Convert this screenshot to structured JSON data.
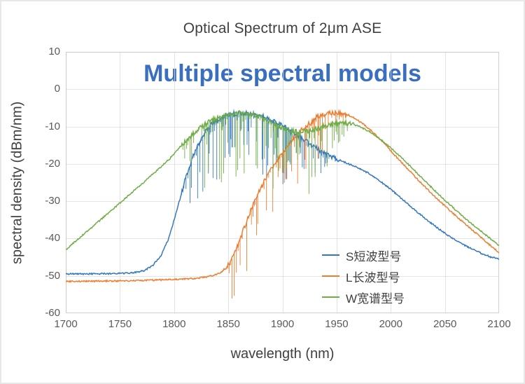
{
  "title": "Optical Spectrum of 2μm ASE",
  "overlay": "Multiple spectral models",
  "axes": {
    "x_label": "wavelength (nm)",
    "y_label": "spectral density (dBm/nm)"
  },
  "colors": {
    "gridline": "#dcdcdc",
    "plot_border": "#c6c6c6",
    "tick_text": "#595959",
    "title_text": "#404040",
    "overlay_text": "#3a6fc0"
  },
  "legend": {
    "items": [
      {
        "label": "S短波型号"
      },
      {
        "label": "L长波型号"
      },
      {
        "label": "W宽谱型号"
      }
    ]
  },
  "chart_data": {
    "type": "line",
    "title": "Optical Spectrum of 2μm ASE",
    "xlabel": "wavelength (nm)",
    "ylabel": "spectral density (dBm/nm)",
    "xlim": [
      1700,
      2100
    ],
    "ylim": [
      -60,
      10
    ],
    "x_ticks": [
      1700,
      1750,
      1800,
      1850,
      1900,
      1950,
      2000,
      2050,
      2100
    ],
    "y_ticks": [
      10,
      0,
      -10,
      -20,
      -30,
      -40,
      -50,
      -60
    ],
    "grid": true,
    "legend_position": "inside-lower-right",
    "note": "curves carry dense downward absorption-line spikes in their peak regions",
    "series": [
      {
        "name": "S短波型号",
        "color": "#3579bd",
        "points": [
          [
            1700,
            -49.5
          ],
          [
            1745,
            -49.4
          ],
          [
            1762,
            -49.2
          ],
          [
            1772,
            -48.6
          ],
          [
            1780,
            -47.3
          ],
          [
            1788,
            -44.5
          ],
          [
            1795,
            -40
          ],
          [
            1802,
            -33
          ],
          [
            1810,
            -24.5
          ],
          [
            1818,
            -17.5
          ],
          [
            1826,
            -12.5
          ],
          [
            1834,
            -9.6
          ],
          [
            1842,
            -7.9
          ],
          [
            1850,
            -6.9
          ],
          [
            1858,
            -6.5
          ],
          [
            1866,
            -6.4
          ],
          [
            1874,
            -6.7
          ],
          [
            1882,
            -7.3
          ],
          [
            1890,
            -8.3
          ],
          [
            1898,
            -9.5
          ],
          [
            1906,
            -10.9
          ],
          [
            1914,
            -12.4
          ],
          [
            1922,
            -14
          ],
          [
            1930,
            -15.6
          ],
          [
            1940,
            -17.3
          ],
          [
            1950,
            -18.7
          ],
          [
            1960,
            -19.9
          ],
          [
            1970,
            -21
          ],
          [
            1980,
            -22.6
          ],
          [
            1990,
            -24.6
          ],
          [
            2000,
            -26.8
          ],
          [
            2012,
            -29.8
          ],
          [
            2024,
            -32.8
          ],
          [
            2036,
            -35.6
          ],
          [
            2048,
            -38.2
          ],
          [
            2060,
            -40.5
          ],
          [
            2072,
            -42.4
          ],
          [
            2084,
            -44
          ],
          [
            2092,
            -44.9
          ],
          [
            2100,
            -45.5
          ]
        ],
        "noise": {
          "from": 1805,
          "to": 1952,
          "rin": 14,
          "rout": 45,
          "max": 16
        }
      },
      {
        "name": "L长波型号",
        "color": "#ed7d31",
        "points": [
          [
            1700,
            -51.5
          ],
          [
            1760,
            -51.3
          ],
          [
            1800,
            -51
          ],
          [
            1818,
            -50.7
          ],
          [
            1832,
            -50.2
          ],
          [
            1842,
            -49.3
          ],
          [
            1848,
            -48
          ],
          [
            1853,
            -45.8
          ],
          [
            1858,
            -42.5
          ],
          [
            1863,
            -38.5
          ],
          [
            1868,
            -34.5
          ],
          [
            1873,
            -30.8
          ],
          [
            1878,
            -27.6
          ],
          [
            1884,
            -24.3
          ],
          [
            1890,
            -21.3
          ],
          [
            1896,
            -18.6
          ],
          [
            1902,
            -16.2
          ],
          [
            1908,
            -14
          ],
          [
            1914,
            -12.1
          ],
          [
            1920,
            -10.4
          ],
          [
            1926,
            -9
          ],
          [
            1932,
            -7.3
          ],
          [
            1938,
            -6.7
          ],
          [
            1944,
            -6.4
          ],
          [
            1949,
            -6.3
          ],
          [
            1954,
            -6.4
          ],
          [
            1960,
            -6.9
          ],
          [
            1966,
            -7.7
          ],
          [
            1972,
            -8.8
          ],
          [
            1978,
            -10.1
          ],
          [
            1984,
            -11.6
          ],
          [
            1992,
            -13.9
          ],
          [
            2000,
            -16.5
          ],
          [
            2010,
            -19.6
          ],
          [
            2020,
            -22.7
          ],
          [
            2030,
            -25.7
          ],
          [
            2040,
            -28.6
          ],
          [
            2050,
            -31.3
          ],
          [
            2060,
            -33.9
          ],
          [
            2070,
            -36.4
          ],
          [
            2080,
            -38.9
          ],
          [
            2090,
            -41.4
          ],
          [
            2100,
            -43.8
          ]
        ],
        "noise": {
          "from": 1846,
          "to": 1962,
          "rin": 10,
          "rout": 35,
          "max": 14
        }
      },
      {
        "name": "W宽谱型号",
        "color": "#70ad47",
        "points": [
          [
            1700,
            -43
          ],
          [
            1712,
            -40
          ],
          [
            1724,
            -37
          ],
          [
            1736,
            -34
          ],
          [
            1748,
            -31
          ],
          [
            1760,
            -27.9
          ],
          [
            1772,
            -24.9
          ],
          [
            1784,
            -21.8
          ],
          [
            1796,
            -18.6
          ],
          [
            1804,
            -15.9
          ],
          [
            1812,
            -13.4
          ],
          [
            1820,
            -11.2
          ],
          [
            1828,
            -9.5
          ],
          [
            1836,
            -8.2
          ],
          [
            1844,
            -7.2
          ],
          [
            1852,
            -6.6
          ],
          [
            1860,
            -6.3
          ],
          [
            1868,
            -6.5
          ],
          [
            1876,
            -7.1
          ],
          [
            1884,
            -8
          ],
          [
            1892,
            -9.2
          ],
          [
            1900,
            -10.4
          ],
          [
            1908,
            -11.2
          ],
          [
            1916,
            -11.5
          ],
          [
            1924,
            -11.2
          ],
          [
            1932,
            -10.5
          ],
          [
            1940,
            -9.8
          ],
          [
            1948,
            -9.2
          ],
          [
            1956,
            -9
          ],
          [
            1964,
            -9.3
          ],
          [
            1972,
            -10.1
          ],
          [
            1980,
            -11.3
          ],
          [
            1988,
            -12.9
          ],
          [
            1996,
            -14.7
          ],
          [
            2004,
            -16.8
          ],
          [
            2014,
            -19.5
          ],
          [
            2024,
            -22.4
          ],
          [
            2034,
            -25.3
          ],
          [
            2044,
            -28.1
          ],
          [
            2054,
            -30.8
          ],
          [
            2064,
            -33.4
          ],
          [
            2074,
            -35.9
          ],
          [
            2084,
            -38.2
          ],
          [
            2092,
            -40
          ],
          [
            2100,
            -41.8
          ]
        ],
        "noise": {
          "from": 1806,
          "to": 1966,
          "rin": 14,
          "rout": 40,
          "max": 20
        }
      }
    ]
  }
}
